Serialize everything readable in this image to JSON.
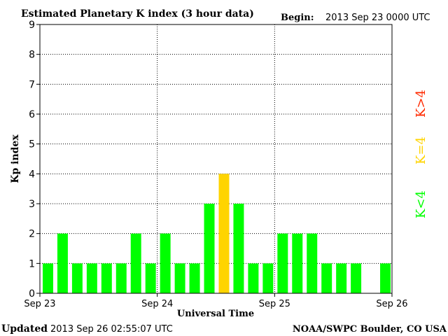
{
  "header": {
    "title": "Estimated Planetary K index (3 hour data)",
    "begin_label": "Begin:",
    "begin_value": "2013 Sep 23 0000 UTC"
  },
  "footer": {
    "updated_label": "Updated",
    "updated_value": "2013 Sep 26 02:55:07 UTC",
    "source": "NOAA/SWPC Boulder, CO USA"
  },
  "legend": {
    "above": "K>4",
    "equal": "K=4",
    "below": "K<4"
  },
  "colors": {
    "below": "#00ff00",
    "equal": "#ffd400",
    "above": "#ff2a00",
    "axis": "#000000",
    "grid": "#000000"
  },
  "chart_data": {
    "type": "bar",
    "xlabel": "Universal Time",
    "ylabel": "Kp index",
    "ylim": [
      0,
      9
    ],
    "yticks": [
      0,
      1,
      2,
      3,
      4,
      5,
      6,
      7,
      8,
      9
    ],
    "xticks": [
      "Sep 23",
      "Sep 24",
      "Sep 25",
      "Sep 26"
    ],
    "interval_hours": 3,
    "grid": "dotted",
    "values": [
      1,
      2,
      1,
      1,
      1,
      1,
      2,
      1,
      2,
      1,
      1,
      3,
      4,
      3,
      1,
      1,
      2,
      2,
      2,
      1,
      1,
      1,
      0,
      1
    ]
  }
}
